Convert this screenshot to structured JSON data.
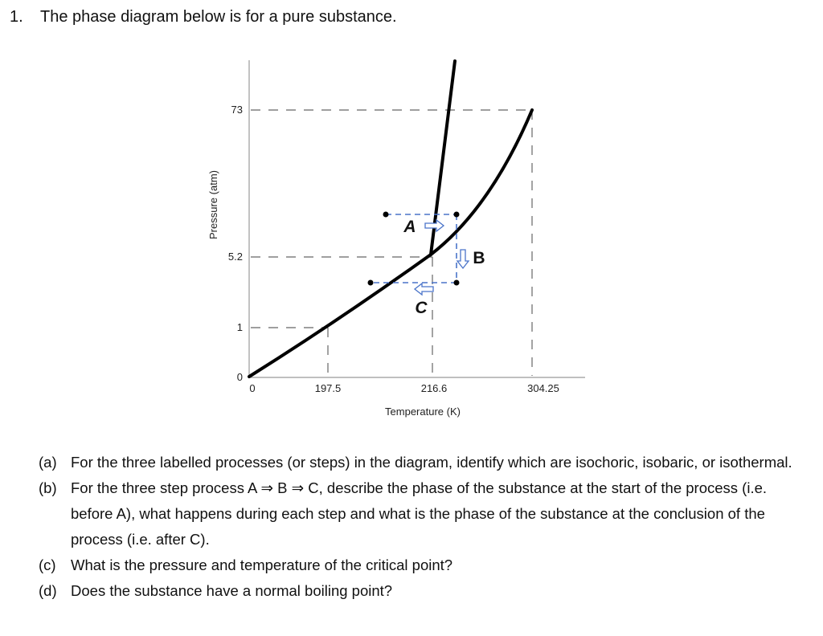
{
  "question": {
    "number": "1.",
    "text": "The phase diagram below is for a pure substance."
  },
  "diagram": {
    "x_axis_label": "Temperature (K)",
    "y_axis_label": "Pressure (atm)",
    "x_ticks": [
      "0",
      "197.5",
      "216.6",
      "304.25"
    ],
    "y_ticks": [
      "0",
      "1",
      "5.2",
      "73"
    ],
    "process_labels": {
      "A": "A",
      "B": "B",
      "C": "C"
    },
    "line_color": "#000000",
    "process_color": "#4a74c9"
  },
  "parts": [
    {
      "label": "(a)",
      "text": "For the three labelled processes (or steps) in the diagram, identify which are isochoric, isobaric, or isothermal."
    },
    {
      "label": "(b)",
      "text": "For the three step process A ⇒ B ⇒ C, describe the phase of the substance at the start of the process (i.e. before A), what happens during each step and what is the phase of the substance at the conclusion of the process (i.e. after C)."
    },
    {
      "label": "(c)",
      "text": "What is the pressure and temperature of the critical point?"
    },
    {
      "label": "(d)",
      "text": "Does the substance have a normal boiling point?"
    }
  ]
}
